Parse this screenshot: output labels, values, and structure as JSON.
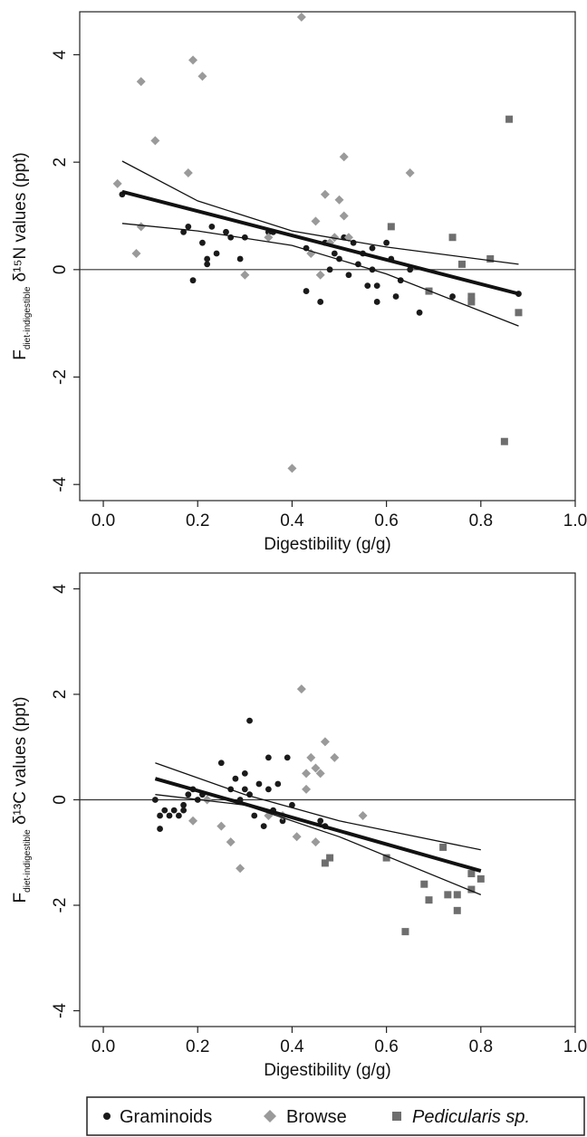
{
  "legend": {
    "items": [
      {
        "label": "Graminoids",
        "marker": "circle",
        "color": "#1a1a1a",
        "italic": false
      },
      {
        "label": "Browse",
        "marker": "diamond",
        "color": "#9a9a9a",
        "italic": false
      },
      {
        "label": "Pedicularis sp.",
        "marker": "square",
        "color": "#6e6e6e",
        "italic": true
      }
    ],
    "placement": "bottom"
  },
  "chart_data": [
    {
      "type": "scatter",
      "title": "",
      "xlabel": "Digestibility (g/g)",
      "ylabel": {
        "main": "F",
        "sub": "diet-indigestible",
        "rest": " δ¹⁵N values (ppt)"
      },
      "xlim": [
        -0.05,
        1.0
      ],
      "ylim": [
        -4.3,
        4.8
      ],
      "xticks": [
        "0.0",
        "0.2",
        "0.4",
        "0.6",
        "0.8",
        "1.0"
      ],
      "yticks": [
        "-4",
        "-2",
        "0",
        "2",
        "4"
      ],
      "ytick_values": [
        -4,
        -2,
        0,
        2,
        4
      ],
      "xtick_values": [
        0.0,
        0.2,
        0.4,
        0.6,
        0.8,
        1.0
      ],
      "hline": 0,
      "fit": {
        "x": [
          0.04,
          0.88
        ],
        "y": [
          1.45,
          -0.45
        ]
      },
      "ci_upper": {
        "x": [
          0.04,
          0.2,
          0.4,
          0.6,
          0.88
        ],
        "y": [
          2.02,
          1.28,
          0.72,
          0.42,
          0.1
        ]
      },
      "ci_lower": {
        "x": [
          0.04,
          0.2,
          0.4,
          0.6,
          0.88
        ],
        "y": [
          0.86,
          0.72,
          0.45,
          -0.08,
          -1.05
        ]
      },
      "series": [
        {
          "name": "Graminoids",
          "marker": "circle",
          "points": [
            [
              0.04,
              1.4
            ],
            [
              0.17,
              0.7
            ],
            [
              0.18,
              0.8
            ],
            [
              0.19,
              -0.2
            ],
            [
              0.21,
              0.5
            ],
            [
              0.22,
              0.1
            ],
            [
              0.22,
              0.2
            ],
            [
              0.23,
              0.8
            ],
            [
              0.24,
              0.3
            ],
            [
              0.26,
              0.7
            ],
            [
              0.27,
              0.6
            ],
            [
              0.29,
              0.2
            ],
            [
              0.3,
              0.6
            ],
            [
              0.35,
              0.7
            ],
            [
              0.36,
              0.7
            ],
            [
              0.43,
              -0.4
            ],
            [
              0.43,
              0.4
            ],
            [
              0.44,
              0.3
            ],
            [
              0.46,
              -0.6
            ],
            [
              0.47,
              0.5
            ],
            [
              0.48,
              0.0
            ],
            [
              0.49,
              0.3
            ],
            [
              0.5,
              0.2
            ],
            [
              0.51,
              0.6
            ],
            [
              0.52,
              -0.1
            ],
            [
              0.53,
              0.5
            ],
            [
              0.54,
              0.1
            ],
            [
              0.55,
              0.3
            ],
            [
              0.56,
              -0.3
            ],
            [
              0.57,
              0.4
            ],
            [
              0.57,
              0.0
            ],
            [
              0.58,
              -0.3
            ],
            [
              0.58,
              -0.6
            ],
            [
              0.6,
              0.5
            ],
            [
              0.61,
              0.2
            ],
            [
              0.62,
              -0.5
            ],
            [
              0.63,
              -0.2
            ],
            [
              0.65,
              0.0
            ],
            [
              0.67,
              -0.8
            ],
            [
              0.74,
              -0.5
            ],
            [
              0.88,
              -0.45
            ]
          ]
        },
        {
          "name": "Browse",
          "marker": "diamond",
          "points": [
            [
              0.03,
              1.6
            ],
            [
              0.07,
              0.3
            ],
            [
              0.08,
              0.8
            ],
            [
              0.08,
              3.5
            ],
            [
              0.11,
              2.4
            ],
            [
              0.18,
              1.8
            ],
            [
              0.19,
              3.9
            ],
            [
              0.21,
              3.6
            ],
            [
              0.3,
              -0.1
            ],
            [
              0.35,
              0.6
            ],
            [
              0.4,
              -3.7
            ],
            [
              0.42,
              4.7
            ],
            [
              0.44,
              0.3
            ],
            [
              0.45,
              0.9
            ],
            [
              0.46,
              -0.1
            ],
            [
              0.47,
              1.4
            ],
            [
              0.48,
              0.5
            ],
            [
              0.49,
              0.6
            ],
            [
              0.5,
              1.3
            ],
            [
              0.51,
              2.1
            ],
            [
              0.51,
              1.0
            ],
            [
              0.52,
              0.6
            ],
            [
              0.65,
              1.8
            ]
          ]
        },
        {
          "name": "Pedicularis sp.",
          "marker": "square",
          "points": [
            [
              0.61,
              0.8
            ],
            [
              0.69,
              -0.4
            ],
            [
              0.74,
              0.6
            ],
            [
              0.76,
              0.1
            ],
            [
              0.78,
              -0.5
            ],
            [
              0.78,
              -0.6
            ],
            [
              0.82,
              0.2
            ],
            [
              0.85,
              -3.2
            ],
            [
              0.86,
              2.8
            ],
            [
              0.88,
              -0.8
            ]
          ]
        }
      ]
    },
    {
      "type": "scatter",
      "title": "",
      "xlabel": "Digestibility (g/g)",
      "ylabel": {
        "main": "F",
        "sub": "diet-indigestible",
        "rest": " δ¹³C values (ppt)"
      },
      "xlim": [
        -0.05,
        1.0
      ],
      "ylim": [
        -4.3,
        4.3
      ],
      "xticks": [
        "0.0",
        "0.2",
        "0.4",
        "0.6",
        "0.8",
        "1.0"
      ],
      "yticks": [
        "-4",
        "-2",
        "0",
        "2",
        "4"
      ],
      "ytick_values": [
        -4,
        -2,
        0,
        2,
        4
      ],
      "xtick_values": [
        0.0,
        0.2,
        0.4,
        0.6,
        0.8,
        1.0
      ],
      "hline": 0,
      "fit": {
        "x": [
          0.11,
          0.8
        ],
        "y": [
          0.4,
          -1.35
        ]
      },
      "ci_upper": {
        "x": [
          0.11,
          0.3,
          0.5,
          0.8
        ],
        "y": [
          0.7,
          0.1,
          -0.4,
          -0.95
        ]
      },
      "ci_lower": {
        "x": [
          0.11,
          0.3,
          0.5,
          0.8
        ],
        "y": [
          0.1,
          -0.1,
          -0.7,
          -1.8
        ]
      },
      "series": [
        {
          "name": "Graminoids",
          "marker": "circle",
          "points": [
            [
              0.11,
              0.0
            ],
            [
              0.12,
              -0.3
            ],
            [
              0.12,
              -0.55
            ],
            [
              0.13,
              -0.2
            ],
            [
              0.14,
              -0.3
            ],
            [
              0.15,
              -0.2
            ],
            [
              0.16,
              -0.3
            ],
            [
              0.17,
              -0.1
            ],
            [
              0.17,
              -0.2
            ],
            [
              0.18,
              0.1
            ],
            [
              0.19,
              0.2
            ],
            [
              0.2,
              0.0
            ],
            [
              0.21,
              0.1
            ],
            [
              0.25,
              0.7
            ],
            [
              0.27,
              0.2
            ],
            [
              0.28,
              0.4
            ],
            [
              0.29,
              0.0
            ],
            [
              0.3,
              0.5
            ],
            [
              0.3,
              0.2
            ],
            [
              0.31,
              1.5
            ],
            [
              0.31,
              0.1
            ],
            [
              0.32,
              -0.3
            ],
            [
              0.33,
              0.3
            ],
            [
              0.34,
              -0.5
            ],
            [
              0.35,
              0.8
            ],
            [
              0.35,
              0.2
            ],
            [
              0.36,
              -0.2
            ],
            [
              0.37,
              0.3
            ],
            [
              0.38,
              -0.4
            ],
            [
              0.39,
              0.8
            ],
            [
              0.4,
              -0.1
            ],
            [
              0.46,
              -0.4
            ],
            [
              0.47,
              -0.5
            ]
          ]
        },
        {
          "name": "Browse",
          "marker": "diamond",
          "points": [
            [
              0.19,
              -0.4
            ],
            [
              0.22,
              0.0
            ],
            [
              0.25,
              -0.5
            ],
            [
              0.27,
              -0.8
            ],
            [
              0.29,
              -1.3
            ],
            [
              0.35,
              -0.3
            ],
            [
              0.38,
              -0.3
            ],
            [
              0.41,
              -0.7
            ],
            [
              0.42,
              2.1
            ],
            [
              0.43,
              0.5
            ],
            [
              0.43,
              0.2
            ],
            [
              0.44,
              0.8
            ],
            [
              0.45,
              0.6
            ],
            [
              0.46,
              0.5
            ],
            [
              0.47,
              1.1
            ],
            [
              0.49,
              0.8
            ],
            [
              0.55,
              -0.3
            ],
            [
              0.45,
              -0.8
            ]
          ]
        },
        {
          "name": "Pedicularis sp.",
          "marker": "square",
          "points": [
            [
              0.47,
              -1.2
            ],
            [
              0.48,
              -1.1
            ],
            [
              0.6,
              -1.1
            ],
            [
              0.64,
              -2.5
            ],
            [
              0.68,
              -1.6
            ],
            [
              0.69,
              -1.9
            ],
            [
              0.72,
              -0.9
            ],
            [
              0.73,
              -1.8
            ],
            [
              0.75,
              -1.8
            ],
            [
              0.75,
              -2.1
            ],
            [
              0.78,
              -1.4
            ],
            [
              0.78,
              -1.7
            ],
            [
              0.8,
              -1.5
            ]
          ]
        }
      ]
    }
  ]
}
